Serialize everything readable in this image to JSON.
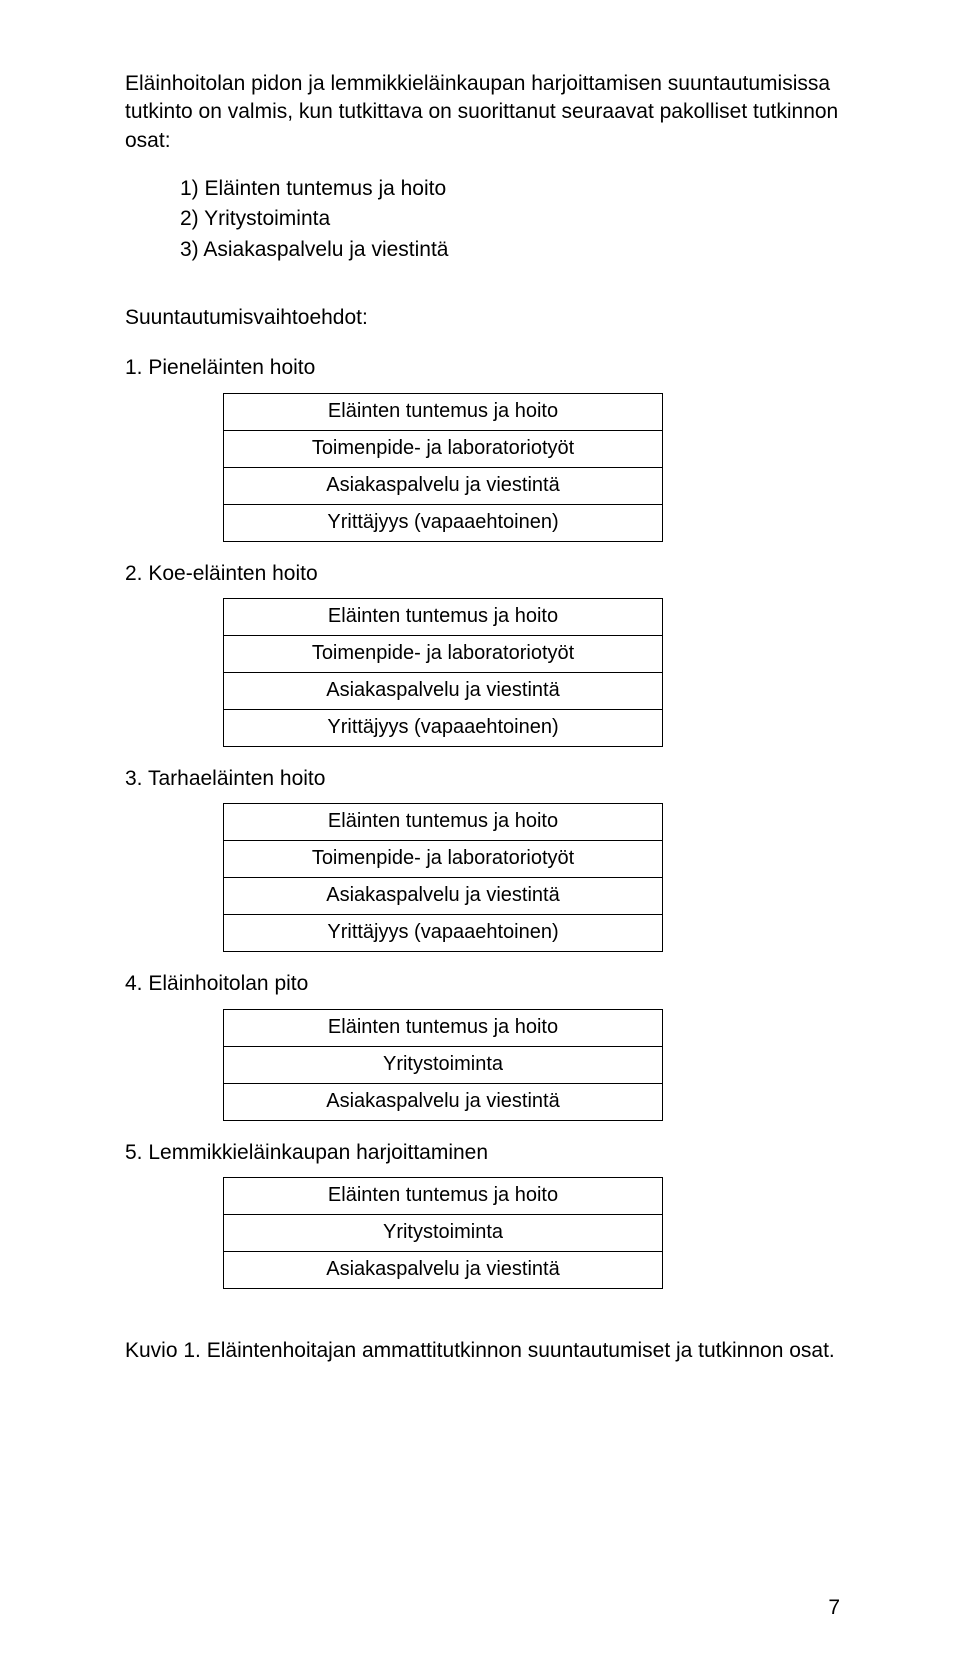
{
  "intro_paragraph": "Eläinhoitolan pidon ja lemmikkieläinkaupan harjoittamisen suuntautumisissa tutkinto on valmis, kun tutkittava on suorittanut seuraavat pakolliset tutkinnon osat:",
  "mandatory": [
    "1)  Eläinten tuntemus ja hoito",
    "2)  Yritystoiminta",
    "3)  Asiakaspalvelu ja viestintä"
  ],
  "subheading": "Suuntautumisvaihtoehdot:",
  "options": [
    {
      "title": "1.  Pieneläinten hoito",
      "rows": [
        "Eläinten tuntemus ja hoito",
        "Toimenpide- ja laboratoriotyöt",
        "Asiakaspalvelu ja viestintä",
        "Yrittäjyys (vapaaehtoinen)"
      ]
    },
    {
      "title": "2.  Koe-eläinten hoito",
      "rows": [
        "Eläinten tuntemus ja hoito",
        "Toimenpide- ja laboratoriotyöt",
        "Asiakaspalvelu ja viestintä",
        "Yrittäjyys (vapaaehtoinen)"
      ]
    },
    {
      "title": "3.  Tarhaeläinten hoito",
      "rows": [
        "Eläinten tuntemus ja hoito",
        "Toimenpide- ja laboratoriotyöt",
        "Asiakaspalvelu ja viestintä",
        "Yrittäjyys (vapaaehtoinen)"
      ]
    },
    {
      "title": "4.  Eläinhoitolan pito",
      "rows": [
        "Eläinten tuntemus ja hoito",
        "Yritystoiminta",
        "Asiakaspalvelu ja viestintä"
      ]
    },
    {
      "title": "5.  Lemmikkieläinkaupan harjoittaminen",
      "rows": [
        "Eläinten tuntemus ja hoito",
        "Yritystoiminta",
        "Asiakaspalvelu ja viestintä"
      ]
    }
  ],
  "caption": "Kuvio 1. Eläintenhoitajan ammattitutkinnon suuntautumiset ja tutkinnon osat.",
  "page_number": "7"
}
